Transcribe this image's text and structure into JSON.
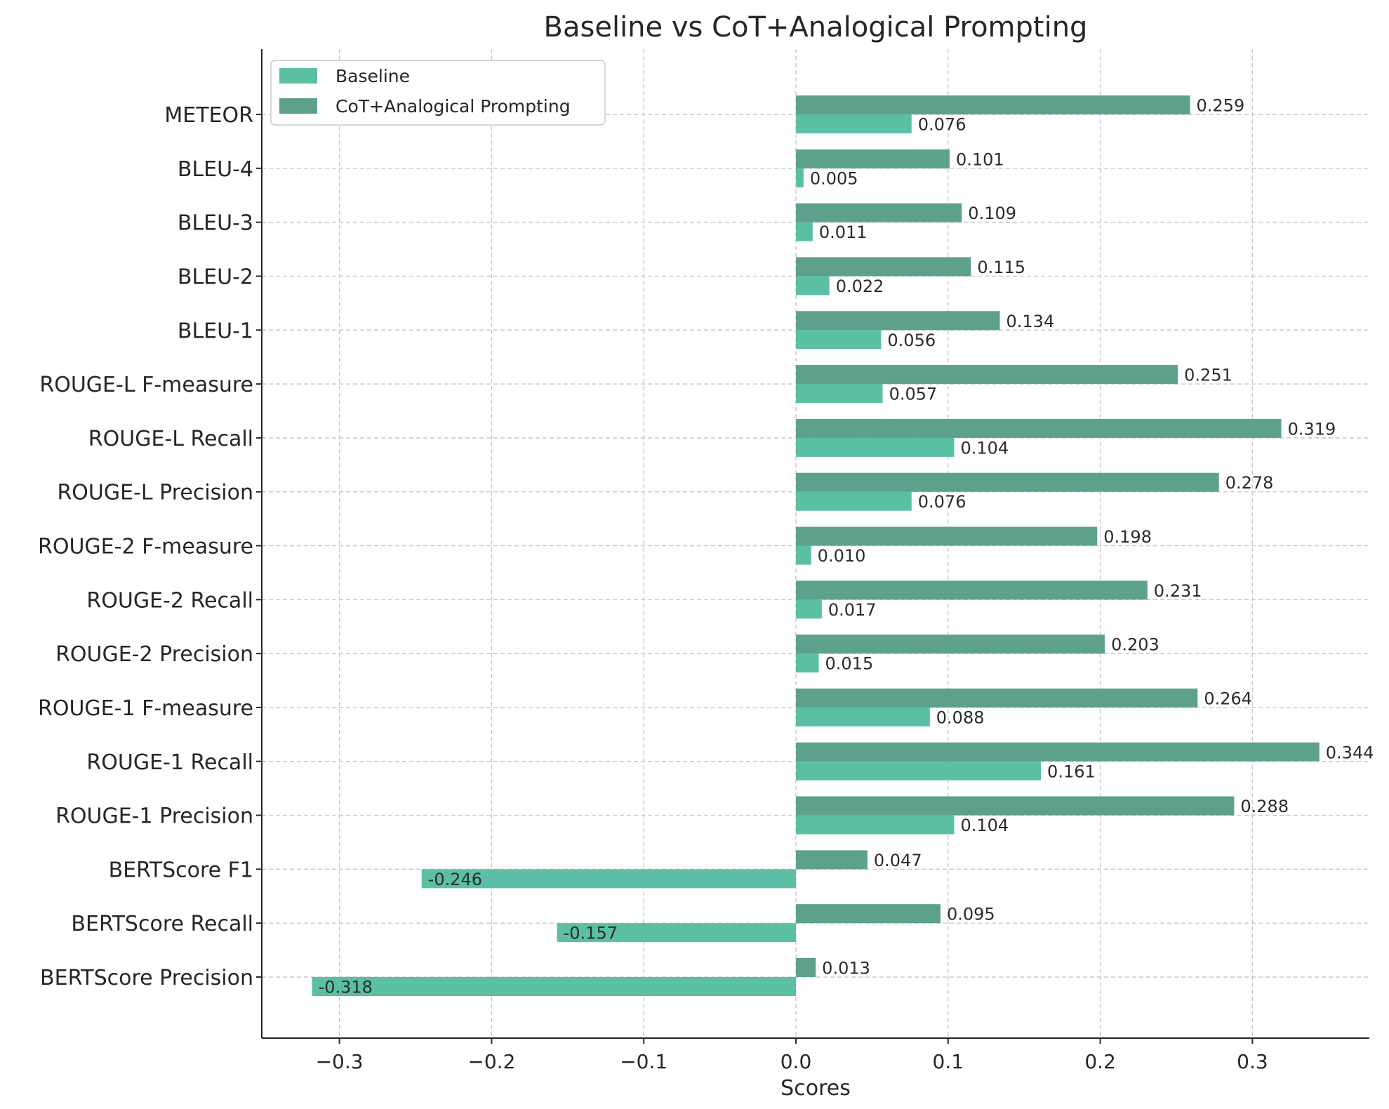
{
  "chart_data": {
    "type": "bar",
    "orientation": "horizontal",
    "title": "Baseline vs CoT+Analogical Prompting",
    "xlabel": "Scores",
    "ylabel": "",
    "xlim": [
      -0.35,
      0.375
    ],
    "xticks": [
      -0.3,
      -0.2,
      -0.1,
      0.0,
      0.1,
      0.2,
      0.3
    ],
    "xtick_labels": [
      "−0.3",
      "−0.2",
      "−0.1",
      "0.0",
      "0.1",
      "0.2",
      "0.3"
    ],
    "grid": true,
    "legend_position": "top-left",
    "categories": [
      "BERTScore Precision",
      "BERTScore Recall",
      "BERTScore F1",
      "ROUGE-1 Precision",
      "ROUGE-1 Recall",
      "ROUGE-1 F-measure",
      "ROUGE-2 Precision",
      "ROUGE-2 Recall",
      "ROUGE-2 F-measure",
      "ROUGE-L Precision",
      "ROUGE-L Recall",
      "ROUGE-L F-measure",
      "BLEU-1",
      "BLEU-2",
      "BLEU-3",
      "BLEU-4",
      "METEOR"
    ],
    "series": [
      {
        "name": "Baseline",
        "color": "#5bbfa4",
        "values": [
          -0.318,
          -0.157,
          -0.246,
          0.104,
          0.161,
          0.088,
          0.015,
          0.017,
          0.01,
          0.076,
          0.104,
          0.057,
          0.056,
          0.022,
          0.011,
          0.005,
          0.076
        ],
        "labels": [
          "-0.318",
          "-0.157",
          "-0.246",
          "0.104",
          "0.161",
          "0.088",
          "0.015",
          "0.017",
          "0.010",
          "0.076",
          "0.104",
          "0.057",
          "0.056",
          "0.022",
          "0.011",
          "0.005",
          "0.076"
        ]
      },
      {
        "name": "CoT+Analogical Prompting",
        "color": "#5da18c",
        "values": [
          0.013,
          0.095,
          0.047,
          0.288,
          0.344,
          0.264,
          0.203,
          0.231,
          0.198,
          0.278,
          0.319,
          0.251,
          0.134,
          0.115,
          0.109,
          0.101,
          0.259
        ],
        "labels": [
          "0.013",
          "0.095",
          "0.047",
          "0.288",
          "0.344",
          "0.264",
          "0.203",
          "0.231",
          "0.198",
          "0.278",
          "0.319",
          "0.251",
          "0.134",
          "0.115",
          "0.109",
          "0.101",
          "0.259"
        ]
      }
    ]
  }
}
